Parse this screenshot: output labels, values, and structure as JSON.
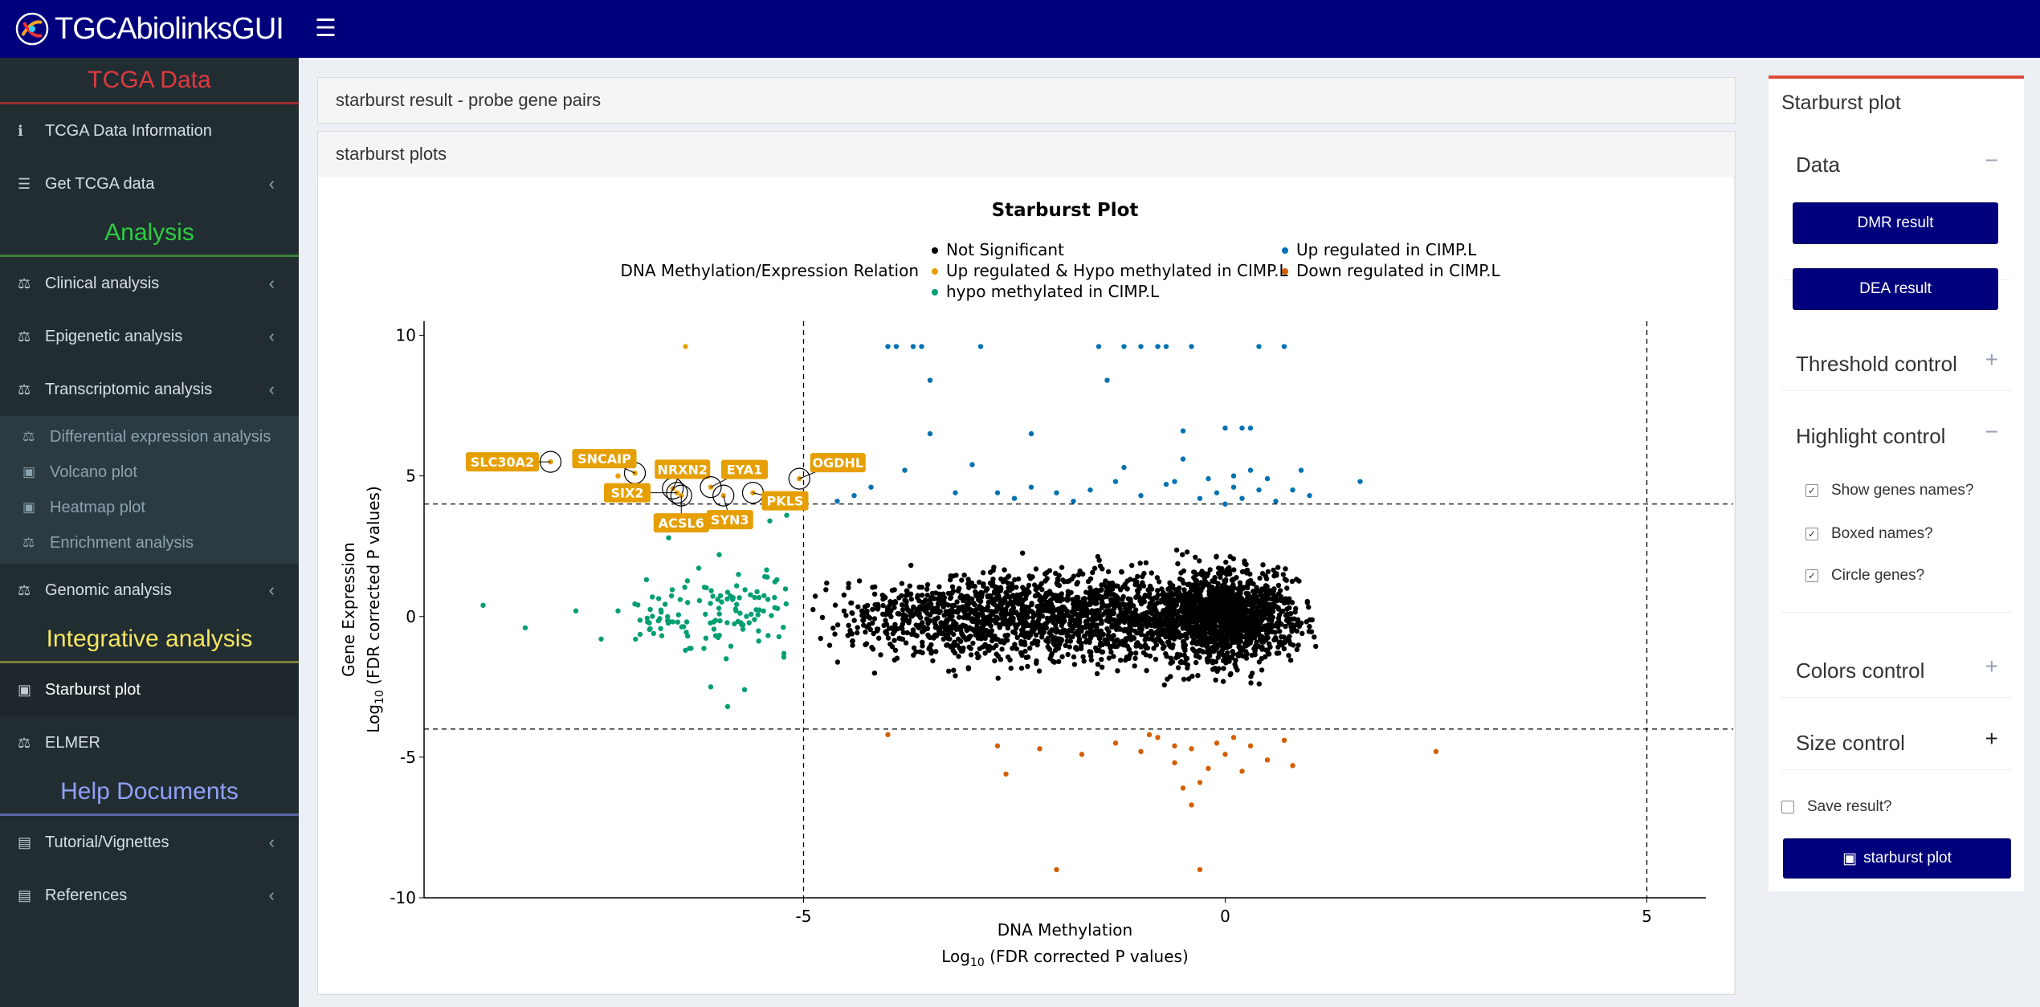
{
  "app": {
    "title": "TGCAbiolinksGUI"
  },
  "sidebar": {
    "sections": {
      "tcga": "TCGA Data",
      "analysis": "Analysis",
      "integrative": "Integrative analysis",
      "help": "Help Documents"
    },
    "tcga_items": [
      "TCGA Data Information",
      "Get TCGA data"
    ],
    "analysis_items": [
      "Clinical analysis",
      "Epigenetic analysis",
      "Transcriptomic analysis"
    ],
    "transcriptomic_sub": [
      "Differential expression analysis",
      "Volcano plot",
      "Heatmap plot",
      "Enrichment analysis"
    ],
    "genomic": "Genomic analysis",
    "integrative_items": [
      "Starburst plot",
      "ELMER"
    ],
    "help_items": [
      "Tutorial/Vignettes",
      "References"
    ]
  },
  "main": {
    "box1_title": "starburst result - probe gene pairs",
    "box2_title": "starburst plots"
  },
  "right_panel": {
    "title": "Starburst plot",
    "data_label": "Data",
    "dmr_button": "DMR result",
    "dea_button": "DEA result",
    "threshold_label": "Threshold control",
    "highlight_label": "Highlight control",
    "show_genes": "Show genes names?",
    "boxed_names": "Boxed names?",
    "circle_genes": "Circle genes?",
    "colors_label": "Colors control",
    "size_label": "Size control",
    "save_result": "Save result?",
    "plot_button": "starburst plot"
  },
  "chart_data": {
    "type": "scatter",
    "title": "Starburst Plot",
    "legend_title": "DNA Methylation/Expression Relation",
    "legend": [
      {
        "label": "Not Significant",
        "color": "#000000"
      },
      {
        "label": "Up regulated & Hypo methylated in CIMP.L",
        "color": "#e69f00"
      },
      {
        "label": "hypo methylated in CIMP.L",
        "color": "#009e73"
      },
      {
        "label": "Up regulated in CIMP.L",
        "color": "#0072b2"
      },
      {
        "label": "Down regulated in CIMP.L",
        "color": "#d55e00"
      }
    ],
    "xlabel": "DNA Methylation",
    "xlabel2_pre": "Log",
    "xlabel2_sub": "10",
    "xlabel2_post": " (FDR corrected P values)",
    "ylabel": "Gene Expression",
    "ylabel2_pre": "Log",
    "ylabel2_sub": "10",
    "ylabel2_post": " (FDR corrected P values)",
    "xlim": [
      -9.5,
      5.7
    ],
    "ylim": [
      -10,
      10.5
    ],
    "xticks": [
      -5,
      0,
      5
    ],
    "xtick_labels": [
      "-5",
      "0",
      "5"
    ],
    "yticks": [
      -10,
      -5,
      0,
      5,
      10
    ],
    "ytick_labels": [
      "-10",
      "-5",
      "0",
      "5",
      "10"
    ],
    "vlines": [
      -5,
      5
    ],
    "hlines": [
      4,
      -4
    ],
    "genes": [
      {
        "name": "SLC30A2",
        "x": -8.0,
        "y": 5.5
      },
      {
        "name": "SNCAIP",
        "x": -7.0,
        "y": 5.1
      },
      {
        "name": "NRXN2",
        "x": -6.55,
        "y": 4.55
      },
      {
        "name": "SIX2",
        "x": -6.5,
        "y": 4.4
      },
      {
        "name": "ACSL6",
        "x": -6.45,
        "y": 4.3
      },
      {
        "name": "EYA1",
        "x": -6.1,
        "y": 4.6
      },
      {
        "name": "SYN3",
        "x": -5.95,
        "y": 4.3
      },
      {
        "name": "PKLS",
        "x": -5.6,
        "y": 4.4
      },
      {
        "name": "OGDHL",
        "x": -5.05,
        "y": 4.9
      }
    ],
    "up_points": [
      [
        -4,
        9.6
      ],
      [
        -3.9,
        9.6
      ],
      [
        -3.7,
        9.6
      ],
      [
        -3.6,
        9.6
      ],
      [
        -2.9,
        9.6
      ],
      [
        -1.5,
        9.6
      ],
      [
        -1.2,
        9.6
      ],
      [
        -1.0,
        9.6
      ],
      [
        -0.8,
        9.6
      ],
      [
        -0.7,
        9.6
      ],
      [
        -0.4,
        9.6
      ],
      [
        0.4,
        9.6
      ],
      [
        0.7,
        9.6
      ],
      [
        -3.5,
        8.4
      ],
      [
        -1.4,
        8.4
      ],
      [
        -3.5,
        6.5
      ],
      [
        -2.3,
        6.5
      ],
      [
        -0.5,
        6.6
      ],
      [
        0.0,
        6.7
      ],
      [
        0.2,
        6.7
      ],
      [
        0.3,
        6.7
      ],
      [
        -3.0,
        5.4
      ],
      [
        -3.8,
        5.2
      ],
      [
        -1.2,
        5.3
      ],
      [
        0.1,
        5.0
      ],
      [
        0.9,
        5.2
      ],
      [
        1.6,
        4.8
      ],
      [
        -4.4,
        4.3
      ],
      [
        -4.2,
        4.6
      ],
      [
        -3.2,
        4.4
      ],
      [
        -2.7,
        4.4
      ],
      [
        -2.3,
        4.6
      ],
      [
        -2.0,
        4.4
      ],
      [
        -1.6,
        4.5
      ],
      [
        -1.3,
        4.8
      ],
      [
        -1.0,
        4.3
      ],
      [
        -0.7,
        4.7
      ],
      [
        -0.5,
        5.6
      ],
      [
        -0.3,
        4.2
      ],
      [
        -0.1,
        4.4
      ],
      [
        0.1,
        4.6
      ],
      [
        0.2,
        4.2
      ],
      [
        0.4,
        4.5
      ],
      [
        0.5,
        4.9
      ],
      [
        0.6,
        4.1
      ],
      [
        0.8,
        4.5
      ],
      [
        1.0,
        4.3
      ],
      [
        -4.6,
        4.1
      ],
      [
        -2.5,
        4.2
      ],
      [
        -1.8,
        4.1
      ],
      [
        -0.6,
        4.8
      ],
      [
        0.3,
        5.2
      ],
      [
        0.0,
        4.0
      ],
      [
        -0.2,
        4.9
      ]
    ],
    "down_points": [
      [
        -4.0,
        -4.2
      ],
      [
        -2.7,
        -4.6
      ],
      [
        -2.6,
        -5.6
      ],
      [
        -2.2,
        -4.7
      ],
      [
        -1.7,
        -4.9
      ],
      [
        -1.3,
        -4.5
      ],
      [
        -1.0,
        -4.8
      ],
      [
        -0.8,
        -4.3
      ],
      [
        -0.6,
        -5.2
      ],
      [
        -0.4,
        -4.7
      ],
      [
        -0.3,
        -5.9
      ],
      [
        -0.2,
        -5.4
      ],
      [
        -0.1,
        -4.5
      ],
      [
        0.0,
        -4.9
      ],
      [
        0.1,
        -4.3
      ],
      [
        0.3,
        -4.6
      ],
      [
        0.5,
        -5.1
      ],
      [
        0.7,
        -4.4
      ],
      [
        0.8,
        -5.3
      ],
      [
        -0.5,
        -6.1
      ],
      [
        -0.4,
        -6.7
      ],
      [
        -2.0,
        -9.0
      ],
      [
        -0.3,
        -9.0
      ],
      [
        2.5,
        -4.8
      ],
      [
        -0.9,
        -4.2
      ],
      [
        0.2,
        -5.5
      ],
      [
        -0.6,
        -4.6
      ]
    ],
    "hypo_extra": [
      [
        -8.8,
        0.4
      ],
      [
        -8.3,
        -0.4
      ],
      [
        -7.7,
        0.2
      ],
      [
        -7.4,
        -0.8
      ],
      [
        -7.2,
        0.2
      ],
      [
        -6.4,
        -1.2
      ],
      [
        -6.1,
        -2.5
      ],
      [
        -5.9,
        -3.2
      ],
      [
        -5.7,
        -2.6
      ],
      [
        -6.6,
        2.8
      ],
      [
        -6.0,
        2.2
      ],
      [
        -5.4,
        3.4
      ],
      [
        -5.2,
        3.6
      ]
    ]
  }
}
